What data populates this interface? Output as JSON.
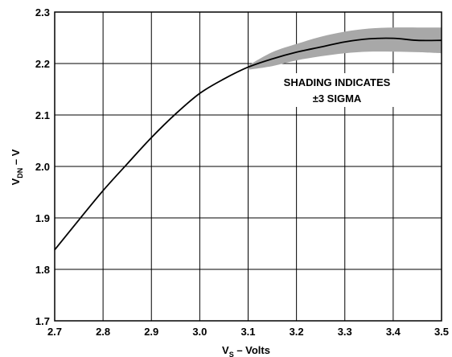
{
  "chart_data": {
    "type": "line",
    "title": "",
    "xlabel": {
      "base": "V",
      "subscript": "S",
      "suffix": " – Volts"
    },
    "ylabel": {
      "base": "V",
      "subscript": "DN",
      "suffix": " – V"
    },
    "xlim": [
      2.7,
      3.5
    ],
    "ylim": [
      1.7,
      2.3
    ],
    "x_ticks": [
      "2.7",
      "2.8",
      "2.9",
      "3.0",
      "3.1",
      "3.2",
      "3.3",
      "3.4",
      "3.5"
    ],
    "y_ticks": [
      "1.7",
      "1.8",
      "1.9",
      "2.0",
      "2.1",
      "2.2",
      "2.3"
    ],
    "grid": true,
    "series": [
      {
        "x": [
          2.7,
          2.75,
          2.8,
          2.85,
          2.9,
          2.95,
          3.0,
          3.05,
          3.1,
          3.15,
          3.2,
          3.25,
          3.3,
          3.35,
          3.4,
          3.45,
          3.5
        ],
        "y": [
          1.838,
          1.896,
          1.953,
          2.005,
          2.056,
          2.102,
          2.142,
          2.17,
          2.193,
          2.209,
          2.222,
          2.232,
          2.242,
          2.248,
          2.249,
          2.245,
          2.245
        ],
        "color": "#000000"
      }
    ],
    "band": {
      "x": [
        3.1,
        3.15,
        3.2,
        3.25,
        3.3,
        3.35,
        3.4,
        3.45,
        3.5
      ],
      "upper": [
        2.196,
        2.222,
        2.238,
        2.252,
        2.262,
        2.268,
        2.27,
        2.27,
        2.27
      ],
      "lower": [
        2.188,
        2.195,
        2.206,
        2.214,
        2.22,
        2.223,
        2.223,
        2.222,
        2.22
      ],
      "color": "#a8a8a8"
    },
    "annotation": [
      "SHADING INDICATES",
      "±3 SIGMA"
    ]
  }
}
